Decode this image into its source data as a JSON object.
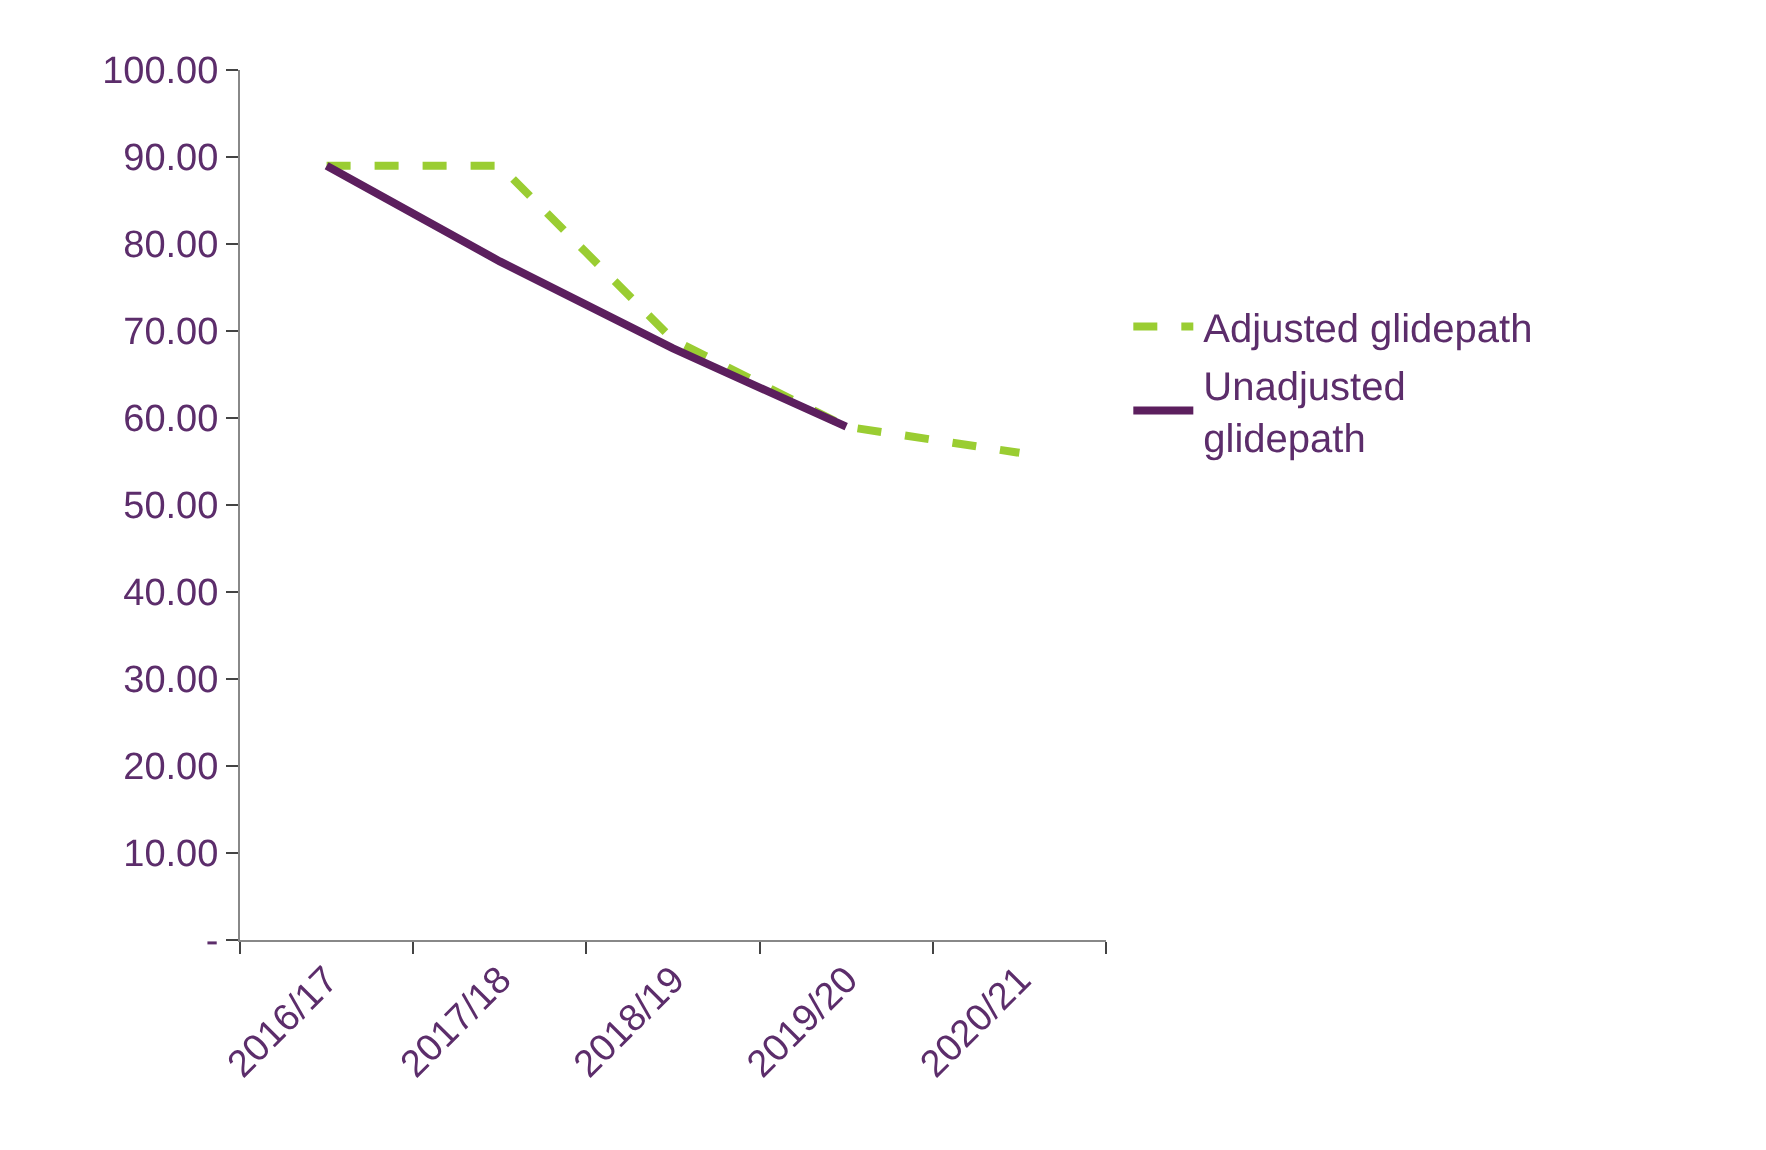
{
  "chart_data": {
    "type": "line",
    "categories": [
      "2016/17",
      "2017/18",
      "2018/19",
      "2019/20",
      "2020/21"
    ],
    "series": [
      {
        "name": "Adjusted glidepath",
        "color": "#9acd32",
        "line_style": "dashed",
        "values": [
          89,
          89,
          69,
          59,
          56
        ]
      },
      {
        "name": "Unadjusted glidepath",
        "color": "#5c1f5e",
        "line_style": "solid",
        "values": [
          89,
          78,
          68,
          59,
          null
        ]
      }
    ],
    "ylim": [
      0,
      100
    ],
    "yticks": [
      {
        "value": 0,
        "label": "-"
      },
      {
        "value": 10,
        "label": "10.00"
      },
      {
        "value": 20,
        "label": "20.00"
      },
      {
        "value": 30,
        "label": "30.00"
      },
      {
        "value": 40,
        "label": "40.00"
      },
      {
        "value": 50,
        "label": "50.00"
      },
      {
        "value": 60,
        "label": "60.00"
      },
      {
        "value": 70,
        "label": "70.00"
      },
      {
        "value": 80,
        "label": "80.00"
      },
      {
        "value": 90,
        "label": "90.00"
      },
      {
        "value": 100,
        "label": "100.00"
      }
    ],
    "legend": "right",
    "marker": "none"
  }
}
